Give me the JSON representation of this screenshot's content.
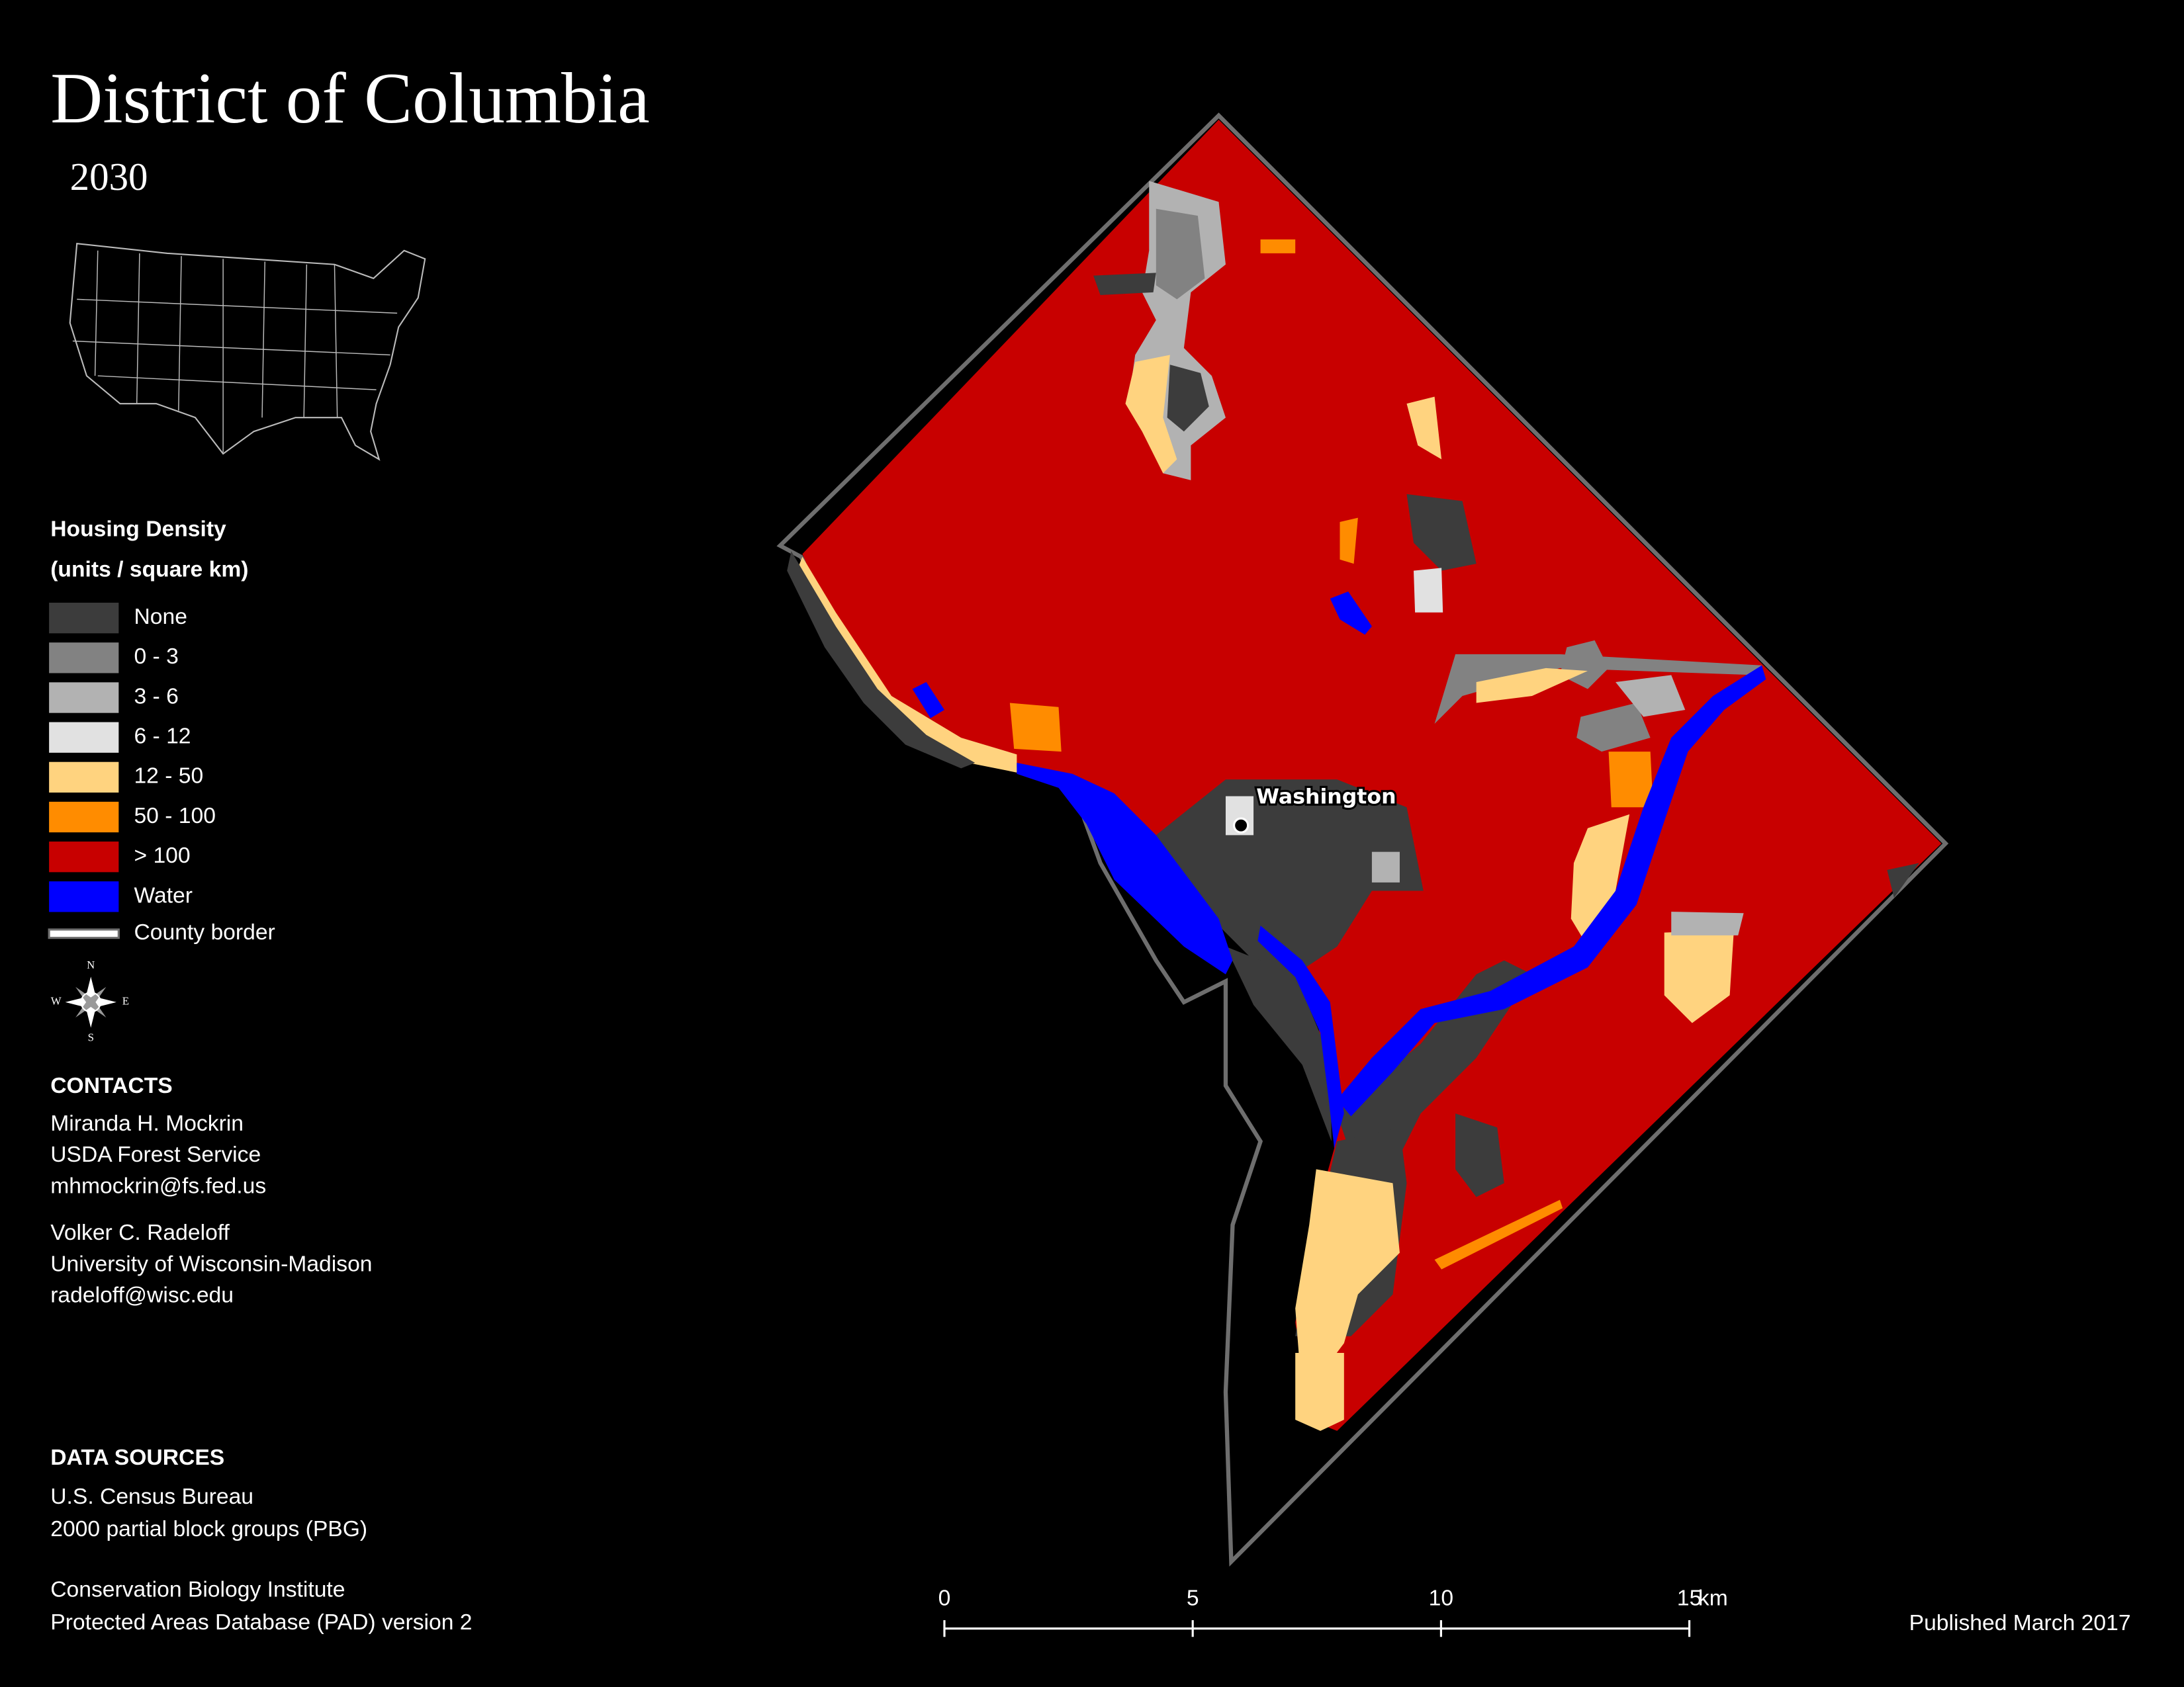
{
  "title": "District of Columbia",
  "subtitle": "2030",
  "legend": {
    "title": "Housing Density",
    "subtitle": "(units / square km)",
    "items": [
      {
        "label": "None",
        "color": "#3c3c3c"
      },
      {
        "label": "0 - 3",
        "color": "#828282"
      },
      {
        "label": "3 - 6",
        "color": "#b2b2b2"
      },
      {
        "label": "6 - 12",
        "color": "#e1e1e1"
      },
      {
        "label": "12 - 50",
        "color": "#ffd37f"
      },
      {
        "label": "50 - 100",
        "color": "#ff8c00"
      },
      {
        "label": "> 100",
        "color": "#c80000"
      },
      {
        "label": "Water",
        "color": "#0000ff"
      }
    ],
    "border": {
      "label": "County border",
      "color": "#6e6e6e"
    }
  },
  "map": {
    "city_label": "Washington"
  },
  "compass": {
    "n": "N",
    "e": "E",
    "s": "S",
    "w": "W"
  },
  "contacts": {
    "heading": "CONTACTS",
    "people": [
      [
        "Miranda H. Mockrin",
        "USDA Forest Service",
        "mhmockrin@fs.fed.us"
      ],
      [
        "Volker C. Radeloff",
        "University of Wisconsin-Madison",
        "radeloff@wisc.edu"
      ]
    ]
  },
  "data_sources": {
    "heading": "DATA SOURCES",
    "entries": [
      [
        "U.S. Census Bureau",
        "2000 partial block groups (PBG)"
      ],
      [
        "Conservation Biology Institute",
        "Protected Areas Database (PAD) version 2"
      ]
    ]
  },
  "scale_bar": {
    "ticks": [
      0,
      5,
      10,
      15
    ],
    "unit": "km"
  },
  "published": "Published March 2017"
}
